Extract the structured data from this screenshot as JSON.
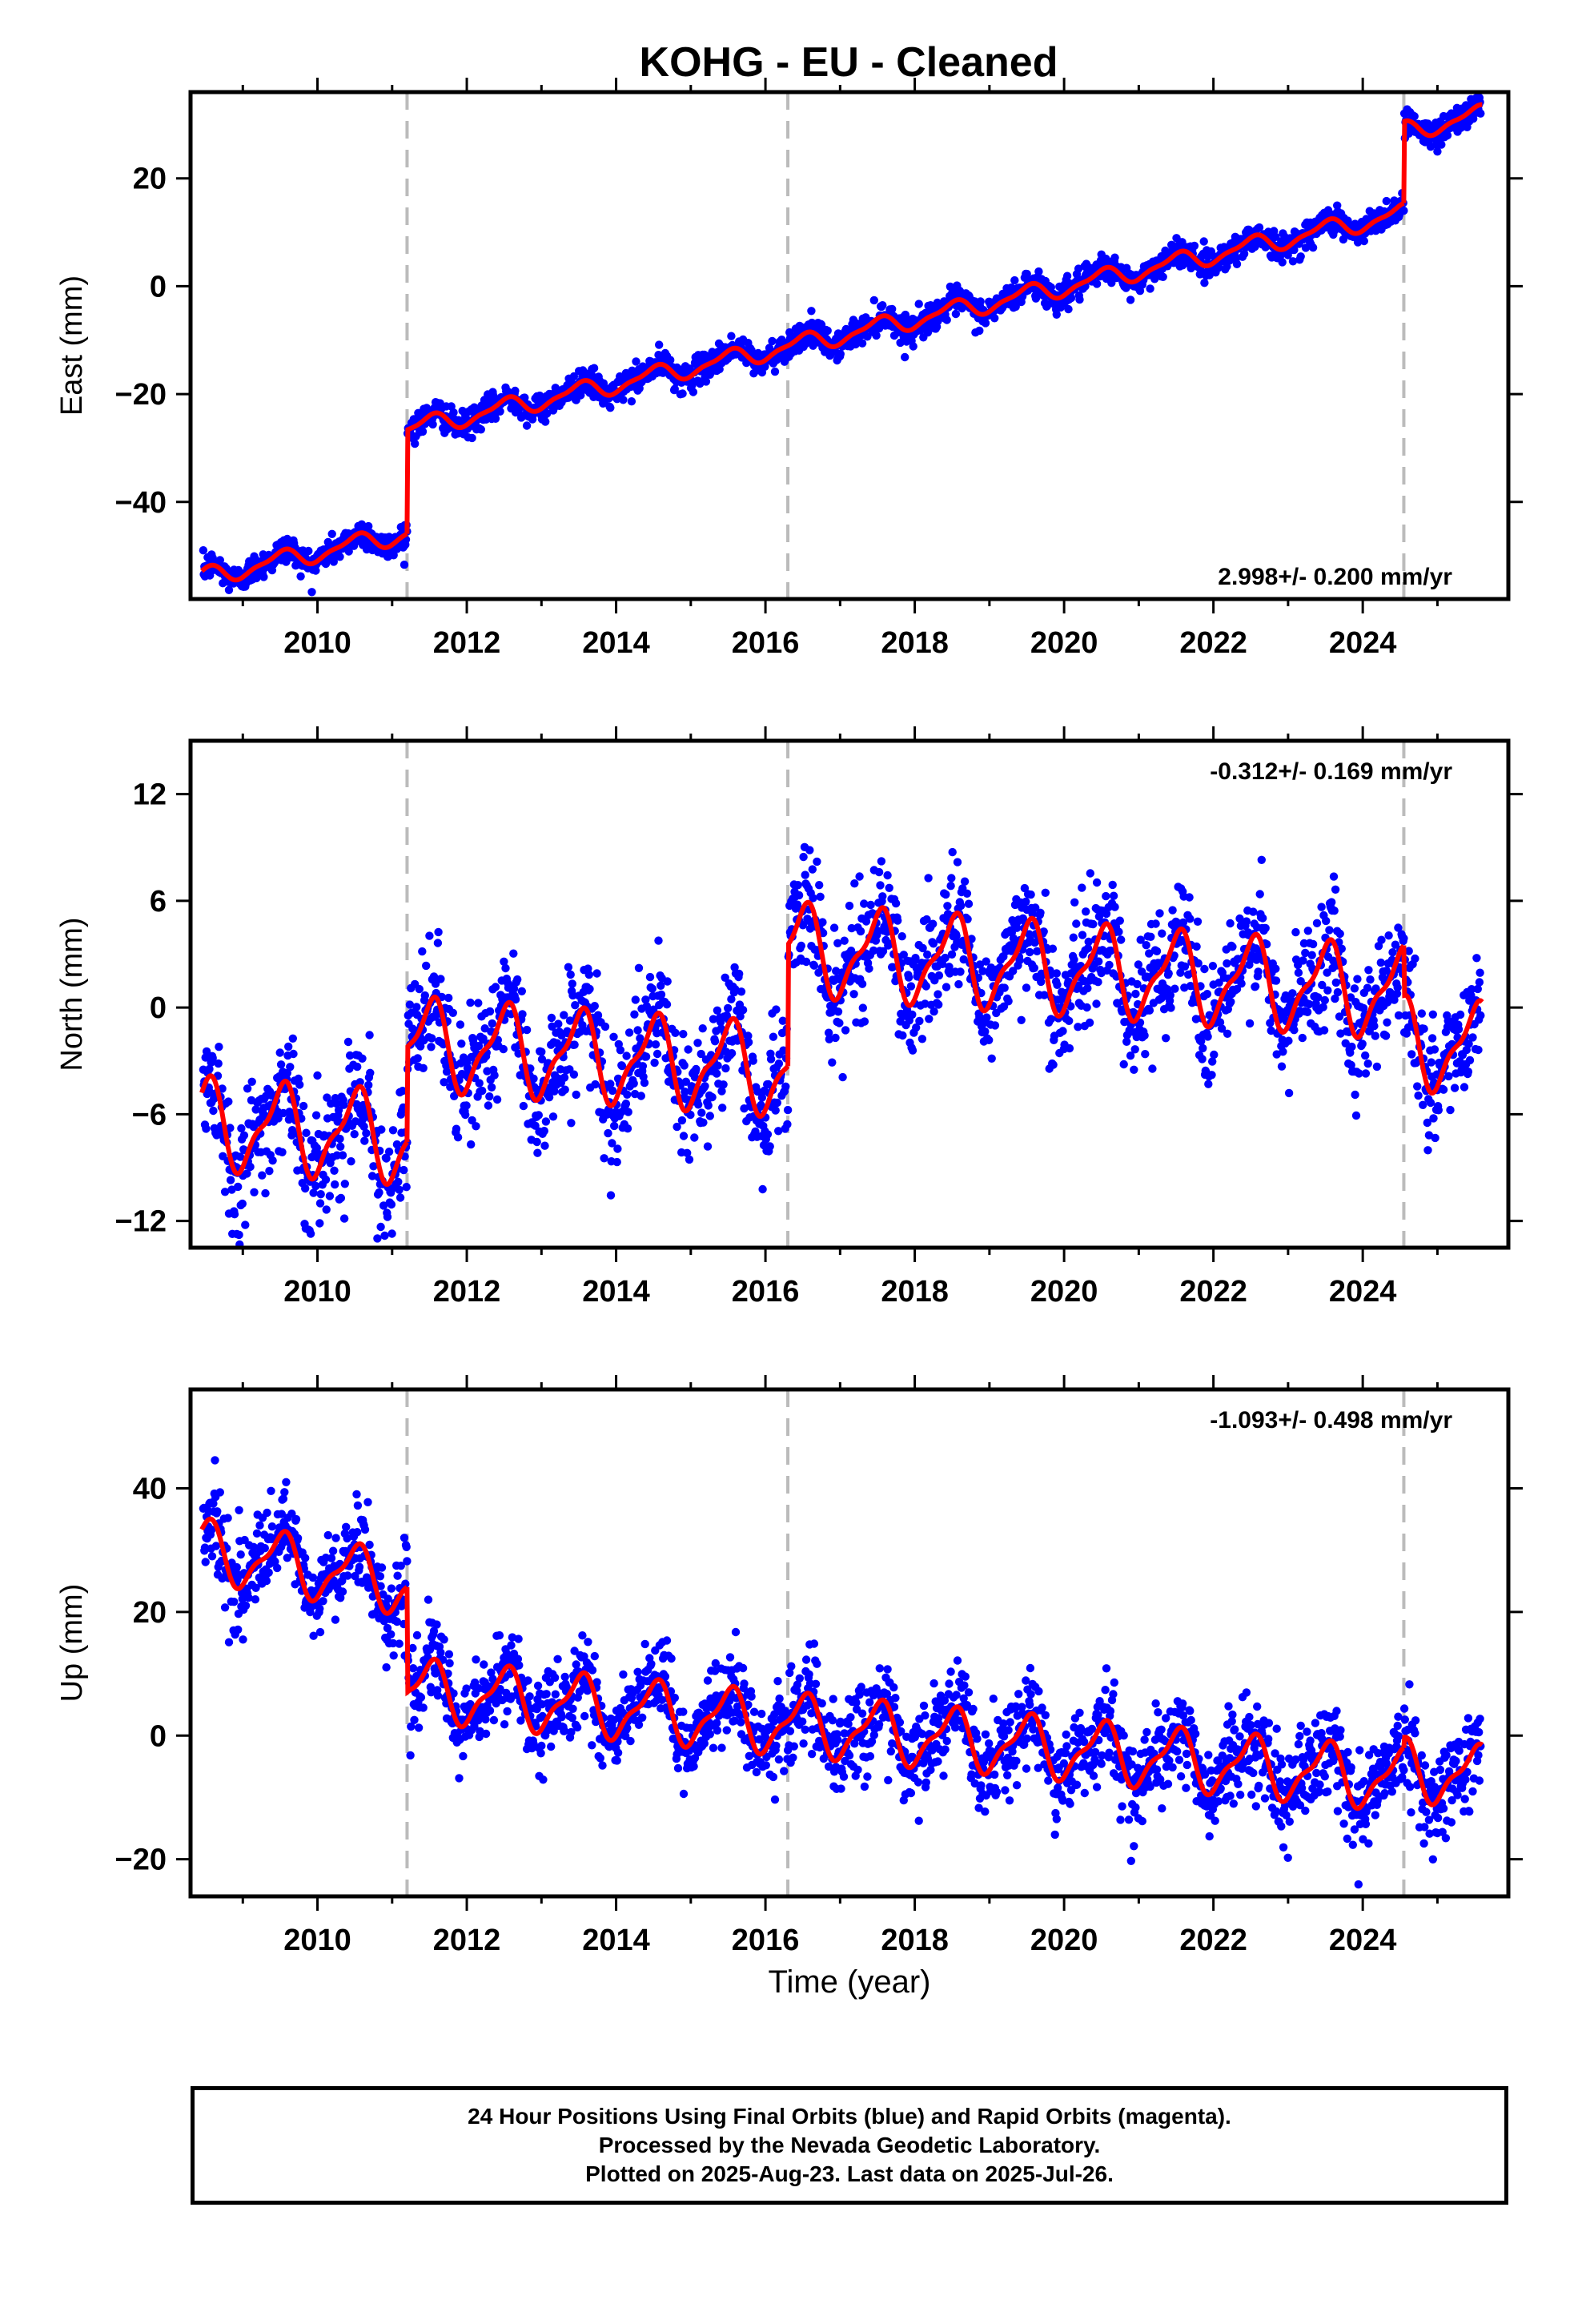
{
  "title": "KOHG  - EU - Cleaned",
  "chart_data": [
    {
      "type": "scatter",
      "component": "east",
      "ylabel": "East (mm)",
      "ylim": [
        -58,
        36
      ],
      "xlim": [
        2008.3,
        2025.95
      ],
      "yticks": [
        -40,
        -20,
        0,
        20
      ],
      "ytick_labels": [
        "−40",
        "−20",
        "0",
        "20"
      ],
      "rate_label": "2.998+/- 0.200 mm/yr",
      "rate_position": "bottom-right",
      "xlabel": "",
      "scatter_color": "#0000ff",
      "model_color": "#ff0000",
      "model": {
        "segments": [
          {
            "t_start": 2008.45,
            "t_end": 2011.2,
            "offset": -54.0,
            "rate": 3.0,
            "annual_amp": 1.6
          },
          {
            "t_start": 2011.2,
            "t_end": 2024.55,
            "offset": -26.5,
            "rate": 3.0,
            "annual_amp": 1.6
          },
          {
            "t_start": 2024.55,
            "t_end": 2025.6,
            "offset": 28.7,
            "rate": 3.0,
            "annual_amp": 1.6
          }
        ],
        "noise_sd": 1.3
      },
      "series": [
        {
          "name": "Final Orbits (blue)",
          "kind": "points"
        },
        {
          "name": "model",
          "kind": "line"
        }
      ]
    },
    {
      "type": "scatter",
      "component": "north",
      "ylabel": "North (mm)",
      "ylim": [
        -13.5,
        15
      ],
      "xlim": [
        2008.3,
        2025.95
      ],
      "yticks": [
        -12,
        -6,
        0,
        6,
        12
      ],
      "ytick_labels": [
        "−12",
        "−6",
        "0",
        "6",
        "12"
      ],
      "rate_label": "-0.312+/- 0.169 mm/yr",
      "rate_position": "top-right",
      "xlabel": "",
      "scatter_color": "#0000ff",
      "model_color": "#ff0000",
      "model": {
        "segments": [
          {
            "t_start": 2008.45,
            "t_end": 2011.2,
            "offset": -6.5,
            "rate": -0.3,
            "annual_amp": 2.3
          },
          {
            "t_start": 2011.2,
            "t_end": 2016.3,
            "offset": -2.0,
            "rate": -0.3,
            "annual_amp": 2.3
          },
          {
            "t_start": 2016.3,
            "t_end": 2024.55,
            "offset": 3.3,
            "rate": -0.3,
            "annual_amp": 2.3
          },
          {
            "t_start": 2024.55,
            "t_end": 2025.6,
            "offset": -2.0,
            "rate": -0.3,
            "annual_amp": 2.3
          }
        ],
        "noise_sd": 1.7
      },
      "series": [
        {
          "name": "Final Orbits (blue)",
          "kind": "points"
        },
        {
          "name": "model",
          "kind": "line"
        }
      ]
    },
    {
      "type": "scatter",
      "component": "up",
      "ylabel": "Up (mm)",
      "ylim": [
        -26,
        56
      ],
      "xlim": [
        2008.3,
        2025.95
      ],
      "yticks": [
        -20,
        0,
        20,
        40
      ],
      "ytick_labels": [
        "−20",
        "0",
        "20",
        "40"
      ],
      "rate_label": "-1.093+/- 0.498 mm/yr",
      "rate_position": "top-right",
      "xlabel": "Time (year)",
      "scatter_color": "#0000ff",
      "model_color": "#ff0000",
      "model": {
        "segments": [
          {
            "t_start": 2008.45,
            "t_end": 2011.2,
            "offset": 30.0,
            "rate": -2.0,
            "annual_amp": 4.5
          },
          {
            "t_start": 2011.2,
            "t_end": 2024.55,
            "offset": 7.5,
            "rate": -1.1,
            "annual_amp": 4.5
          },
          {
            "t_start": 2024.55,
            "t_end": 2025.6,
            "offset": -5.5,
            "rate": -1.1,
            "annual_amp": 4.5
          }
        ],
        "noise_sd": 3.5
      },
      "series": [
        {
          "name": "Final Orbits (blue)",
          "kind": "points"
        },
        {
          "name": "model",
          "kind": "line"
        }
      ]
    }
  ],
  "shared_x": {
    "ticks": [
      2010,
      2012,
      2014,
      2016,
      2018,
      2020,
      2022,
      2024
    ],
    "tick_labels": [
      "2010",
      "2012",
      "2014",
      "2016",
      "2018",
      "2020",
      "2022",
      "2024"
    ],
    "minor_step": 1
  },
  "equipment_change_years": [
    2011.2,
    2016.3,
    2024.55
  ],
  "footer": {
    "line1": "24 Hour Positions Using Final Orbits (blue) and Rapid Orbits (magenta).",
    "line2": "Processed by the Nevada Geodetic Laboratory.",
    "line3": "Plotted on 2025-Aug-23. Last data on 2025-Jul-26."
  }
}
